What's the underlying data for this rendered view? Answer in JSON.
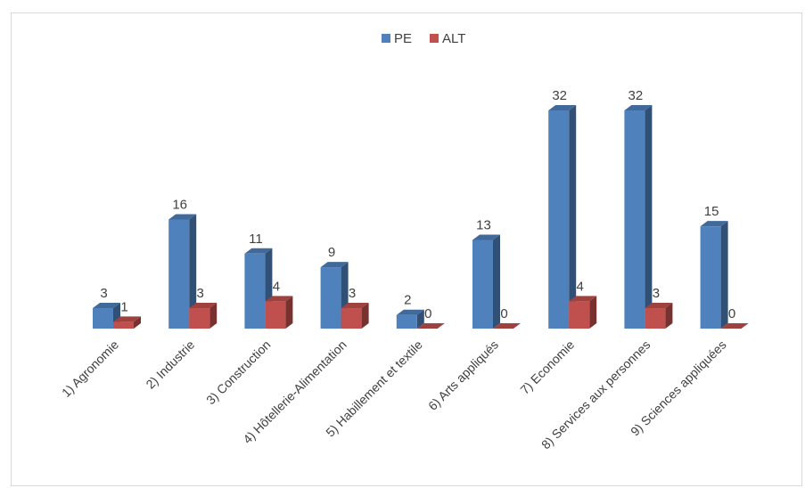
{
  "chart_data": {
    "type": "bar",
    "style": "3d-clustered-column",
    "categories": [
      "1) Agronomie",
      "2) Industrie",
      "3) Construction",
      "4) Hôtellerie-Alimentation",
      "5) Habillement et textile",
      "6) Arts appliqués",
      "7) Economie",
      "8) Services aux personnes",
      "9) Sciences appliquées"
    ],
    "series": [
      {
        "name": "PE",
        "color": "#4f81bd",
        "values": [
          3,
          16,
          11,
          9,
          2,
          13,
          32,
          32,
          15
        ]
      },
      {
        "name": "ALT",
        "color": "#c0504d",
        "values": [
          1,
          3,
          4,
          3,
          0,
          0,
          4,
          3,
          0
        ]
      }
    ],
    "title": "",
    "xlabel": "",
    "ylabel": "",
    "ylim": [
      0,
      32
    ],
    "grid": false,
    "legend": "top-center",
    "data_labels": true
  }
}
